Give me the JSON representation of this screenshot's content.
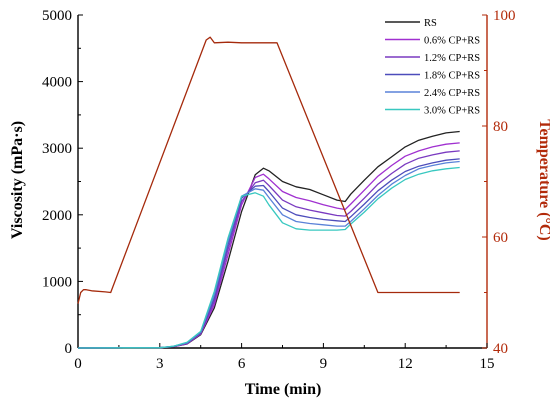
{
  "chart_data": {
    "type": "line",
    "xlabel": "Time (min)",
    "ylabel": "Viscosity (mPa·s)",
    "y2label": "Temperature (°C)",
    "xlim": [
      0,
      15
    ],
    "ylim": [
      0,
      5000
    ],
    "y2lim": [
      40,
      100
    ],
    "xticks": [
      0,
      3,
      6,
      9,
      12,
      15
    ],
    "yticks": [
      0,
      1000,
      2000,
      3000,
      4000,
      5000
    ],
    "y2ticks": [
      40,
      60,
      80,
      100
    ],
    "legend_position": "top-right",
    "grid": false,
    "series": [
      {
        "name": "RS",
        "axis": "left",
        "color": "#222222",
        "x": [
          0,
          3,
          3.5,
          4,
          4.5,
          5,
          5.5,
          6,
          6.5,
          6.8,
          7,
          7.5,
          8,
          8.5,
          9,
          9.5,
          9.8,
          10,
          10.5,
          11,
          11.5,
          12,
          12.5,
          13,
          13.5,
          14
        ],
        "y": [
          0,
          5,
          20,
          60,
          200,
          600,
          1300,
          2050,
          2600,
          2700,
          2660,
          2500,
          2420,
          2380,
          2300,
          2220,
          2200,
          2310,
          2520,
          2720,
          2870,
          3020,
          3120,
          3180,
          3230,
          3250
        ]
      },
      {
        "name": "0.6% CP+RS",
        "axis": "left",
        "color": "#a030d0",
        "x": [
          0,
          3,
          3.5,
          4,
          4.5,
          5,
          5.5,
          6,
          6.5,
          6.8,
          7,
          7.5,
          8,
          8.5,
          9,
          9.5,
          9.8,
          10,
          10.5,
          11,
          11.5,
          12,
          12.5,
          13,
          13.5,
          14
        ],
        "y": [
          0,
          5,
          20,
          65,
          210,
          650,
          1400,
          2150,
          2560,
          2610,
          2540,
          2350,
          2260,
          2210,
          2150,
          2100,
          2080,
          2160,
          2370,
          2580,
          2740,
          2880,
          2960,
          3020,
          3060,
          3080
        ]
      },
      {
        "name": "1.2% CP+RS",
        "axis": "left",
        "color": "#7a3ac0",
        "x": [
          0,
          3,
          3.5,
          4,
          4.5,
          5,
          5.5,
          6,
          6.5,
          6.8,
          7,
          7.5,
          8,
          8.5,
          9,
          9.5,
          9.8,
          10,
          10.5,
          11,
          11.5,
          12,
          12.5,
          13,
          13.5,
          14
        ],
        "y": [
          0,
          5,
          22,
          70,
          220,
          700,
          1480,
          2200,
          2480,
          2520,
          2440,
          2220,
          2120,
          2070,
          2030,
          1990,
          1980,
          2050,
          2250,
          2460,
          2620,
          2760,
          2850,
          2900,
          2940,
          2960
        ]
      },
      {
        "name": "1.8% CP+RS",
        "axis": "left",
        "color": "#4d4dbb",
        "x": [
          0,
          3,
          3.5,
          4,
          4.5,
          5,
          5.5,
          6,
          6.5,
          6.8,
          7,
          7.5,
          8,
          8.5,
          9,
          9.5,
          9.8,
          10,
          10.5,
          11,
          11.5,
          12,
          12.5,
          13,
          13.5,
          14
        ],
        "y": [
          0,
          5,
          24,
          75,
          230,
          750,
          1550,
          2250,
          2430,
          2440,
          2350,
          2100,
          2000,
          1960,
          1930,
          1910,
          1900,
          1970,
          2160,
          2360,
          2520,
          2650,
          2730,
          2780,
          2820,
          2840
        ]
      },
      {
        "name": "2.4% CP+RS",
        "axis": "left",
        "color": "#5a82d8",
        "x": [
          0,
          3,
          3.5,
          4,
          4.5,
          5,
          5.5,
          6,
          6.5,
          6.8,
          7,
          7.5,
          8,
          8.5,
          9,
          9.5,
          9.8,
          10,
          10.5,
          11,
          11.5,
          12,
          12.5,
          13,
          13.5,
          14
        ],
        "y": [
          0,
          5,
          25,
          80,
          240,
          800,
          1600,
          2280,
          2390,
          2370,
          2260,
          2000,
          1900,
          1870,
          1850,
          1830,
          1830,
          1900,
          2090,
          2290,
          2460,
          2590,
          2690,
          2740,
          2780,
          2800
        ]
      },
      {
        "name": "3.0% CP+RS",
        "axis": "left",
        "color": "#38c8c0",
        "x": [
          0,
          3,
          3.5,
          4,
          4.5,
          5,
          5.5,
          6,
          6.5,
          6.8,
          7,
          7.5,
          8,
          8.5,
          9,
          9.5,
          9.8,
          10,
          10.5,
          11,
          11.5,
          12,
          12.5,
          13,
          13.5,
          14
        ],
        "y": [
          0,
          5,
          26,
          85,
          250,
          850,
          1650,
          2280,
          2330,
          2280,
          2150,
          1880,
          1790,
          1770,
          1770,
          1770,
          1780,
          1860,
          2040,
          2240,
          2400,
          2530,
          2610,
          2660,
          2690,
          2710
        ]
      },
      {
        "name": "Temperature",
        "axis": "right",
        "color": "#a52a0c",
        "x": [
          0,
          0.1,
          0.2,
          0.3,
          0.5,
          1.0,
          1.2,
          4.7,
          4.85,
          5.0,
          5.5,
          6,
          7.3,
          11.0,
          11.5,
          12,
          14
        ],
        "y": [
          48,
          50,
          50.5,
          50.5,
          50.3,
          50.1,
          50,
          95.5,
          96,
          95,
          95.1,
          95,
          95,
          50,
          50,
          50,
          50
        ]
      }
    ]
  }
}
